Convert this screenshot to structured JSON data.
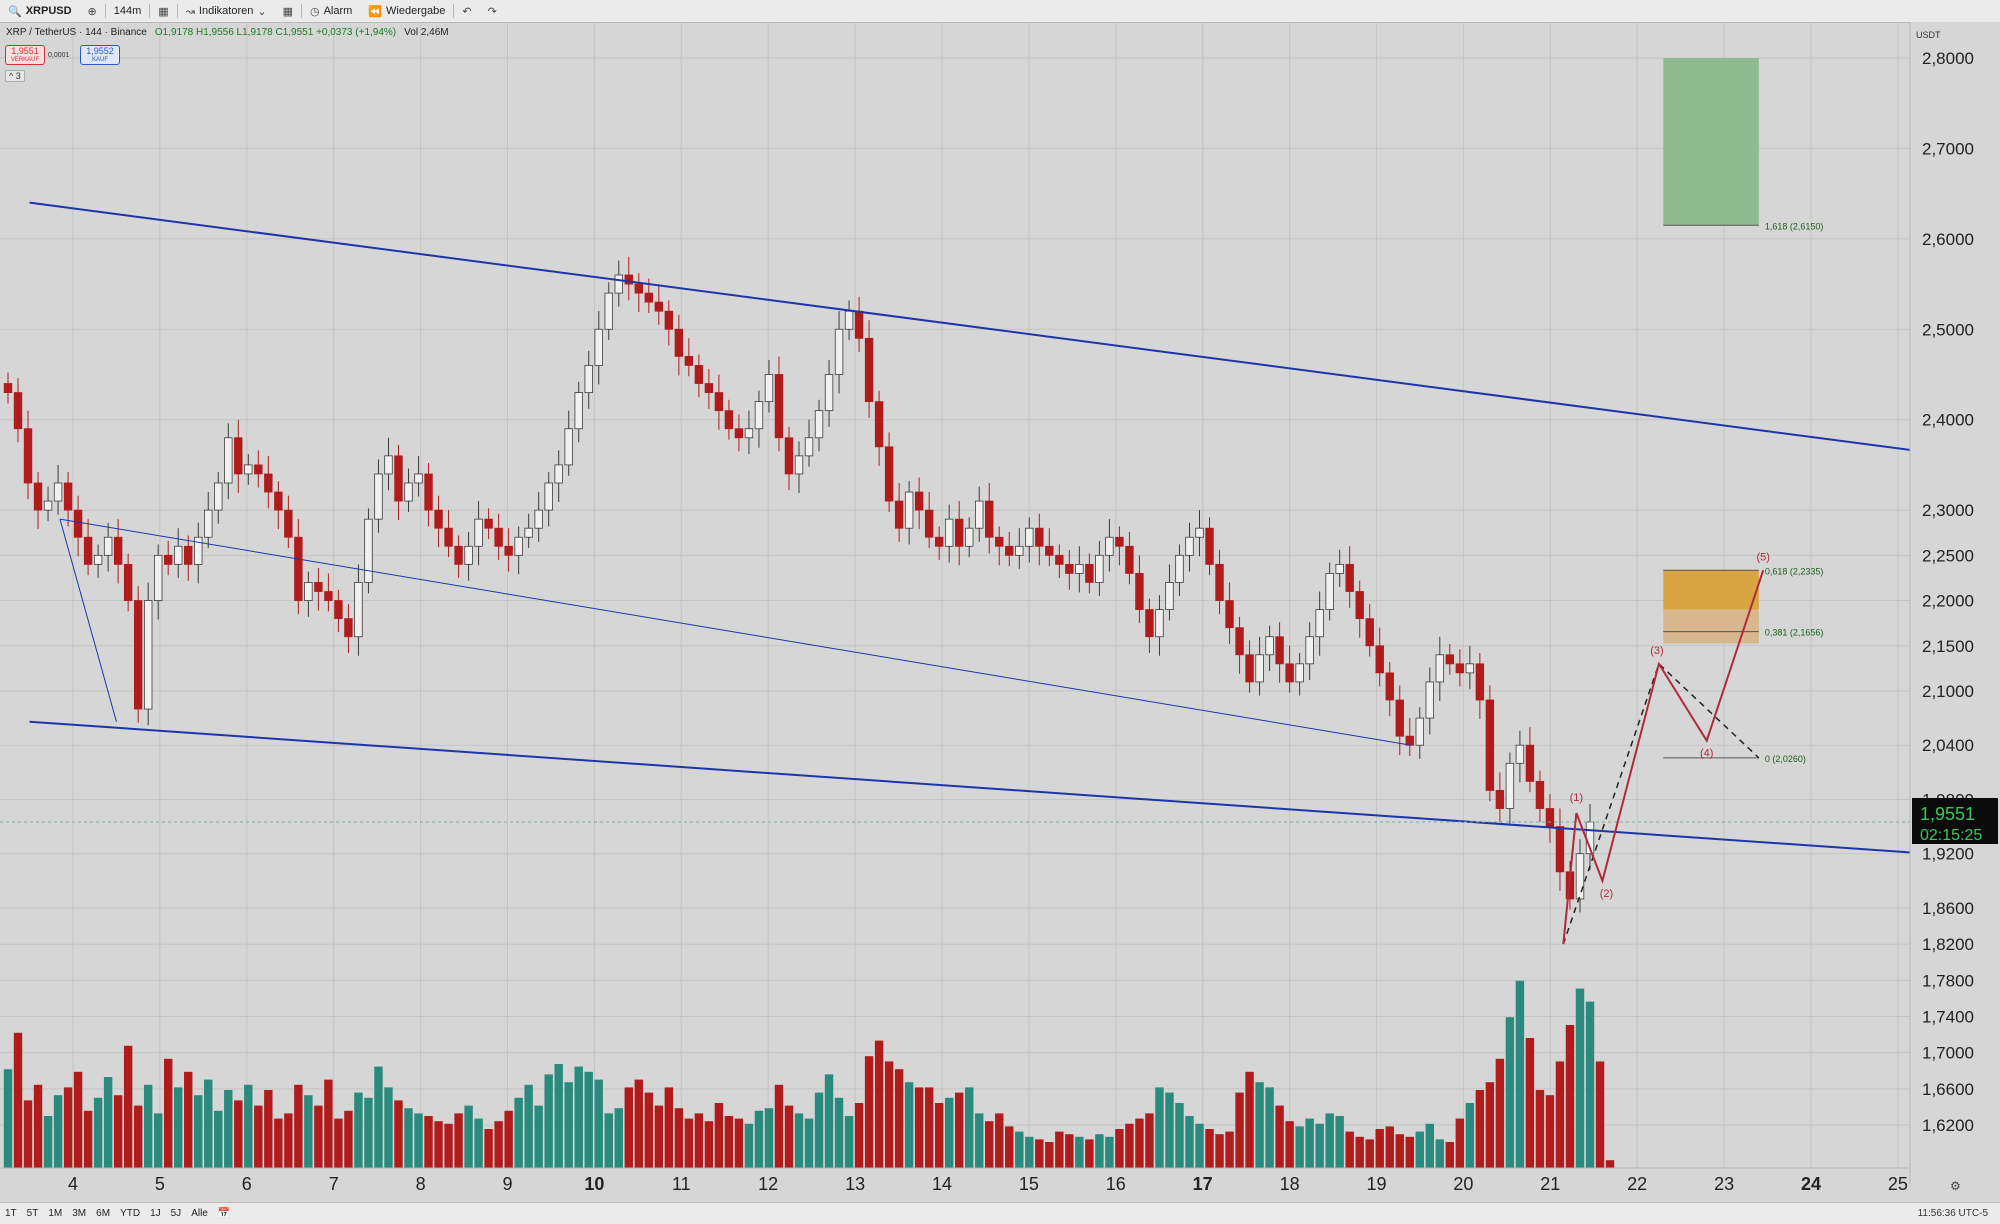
{
  "toolbar": {
    "symbol": "XRPUSD",
    "interval": "144m",
    "indicators_label": "Indikatoren",
    "alarm_label": "Alarm",
    "replay_label": "Wiedergabe"
  },
  "legend": {
    "title": "XRP / TetherUS · 144 · Binance",
    "ohlc": "O1,9178 H1,9556 L1,9178 C1,9551 +0,0373 (+1,94%)",
    "volume": "Vol 2,46M",
    "sell_price": "1,9551",
    "sell_label": "VERKAUF",
    "spread": "0,0001",
    "buy_price": "1,9552",
    "buy_label": "KAUF",
    "collapse": "^ 3"
  },
  "price_badge": {
    "price": "1,9551",
    "countdown": "02:15:25"
  },
  "bottombar": {
    "ranges": [
      "1T",
      "5T",
      "1M",
      "3M",
      "6M",
      "YTD",
      "1J",
      "5J",
      "Alle"
    ],
    "clock": "11:56:36 UTC-5"
  },
  "chart_data": {
    "type": "candlestick",
    "currency_label": "USDT",
    "y_ticks": [
      "2,8000",
      "2,7000",
      "2,6000",
      "2,5000",
      "2,4000",
      "2,3000",
      "2,2500",
      "2,2000",
      "2,1500",
      "2,1000",
      "2,0400",
      "1,9800",
      "1,9200",
      "1,8600",
      "1,8200",
      "1,7800",
      "1,7400",
      "1,7000",
      "1,6600",
      "1,6200"
    ],
    "x_ticks": [
      {
        "label": "4",
        "day": 4,
        "bold": false
      },
      {
        "label": "5",
        "day": 5,
        "bold": false
      },
      {
        "label": "6",
        "day": 6,
        "bold": false
      },
      {
        "label": "7",
        "day": 7,
        "bold": false
      },
      {
        "label": "8",
        "day": 8,
        "bold": false
      },
      {
        "label": "9",
        "day": 9,
        "bold": false
      },
      {
        "label": "10",
        "day": 10,
        "bold": true
      },
      {
        "label": "11",
        "day": 11,
        "bold": false
      },
      {
        "label": "12",
        "day": 12,
        "bold": false
      },
      {
        "label": "13",
        "day": 13,
        "bold": false
      },
      {
        "label": "14",
        "day": 14,
        "bold": false
      },
      {
        "label": "15",
        "day": 15,
        "bold": false
      },
      {
        "label": "16",
        "day": 16,
        "bold": false
      },
      {
        "label": "17",
        "day": 17,
        "bold": true
      },
      {
        "label": "18",
        "day": 18,
        "bold": false
      },
      {
        "label": "19",
        "day": 19,
        "bold": false
      },
      {
        "label": "20",
        "day": 20,
        "bold": false
      },
      {
        "label": "21",
        "day": 21,
        "bold": false
      },
      {
        "label": "22",
        "day": 22,
        "bold": false
      },
      {
        "label": "23",
        "day": 23,
        "bold": false
      },
      {
        "label": "24",
        "day": 24,
        "bold": true
      },
      {
        "label": "25",
        "day": 25,
        "bold": false
      }
    ],
    "closes": [
      2.43,
      2.39,
      2.33,
      2.3,
      2.31,
      2.33,
      2.3,
      2.27,
      2.24,
      2.25,
      2.27,
      2.24,
      2.2,
      2.08,
      2.2,
      2.25,
      2.24,
      2.26,
      2.24,
      2.27,
      2.3,
      2.33,
      2.38,
      2.34,
      2.35,
      2.34,
      2.32,
      2.3,
      2.27,
      2.2,
      2.22,
      2.21,
      2.2,
      2.18,
      2.16,
      2.22,
      2.29,
      2.34,
      2.36,
      2.31,
      2.33,
      2.34,
      2.3,
      2.28,
      2.26,
      2.24,
      2.26,
      2.29,
      2.28,
      2.26,
      2.25,
      2.27,
      2.28,
      2.3,
      2.33,
      2.35,
      2.39,
      2.43,
      2.46,
      2.5,
      2.54,
      2.56,
      2.55,
      2.54,
      2.53,
      2.52,
      2.5,
      2.47,
      2.46,
      2.44,
      2.43,
      2.41,
      2.39,
      2.38,
      2.39,
      2.42,
      2.45,
      2.38,
      2.34,
      2.36,
      2.38,
      2.41,
      2.45,
      2.5,
      2.52,
      2.49,
      2.42,
      2.37,
      2.31,
      2.28,
      2.32,
      2.3,
      2.27,
      2.26,
      2.29,
      2.26,
      2.28,
      2.31,
      2.27,
      2.26,
      2.25,
      2.26,
      2.28,
      2.26,
      2.25,
      2.24,
      2.23,
      2.24,
      2.22,
      2.25,
      2.27,
      2.26,
      2.23,
      2.19,
      2.16,
      2.19,
      2.22,
      2.25,
      2.27,
      2.28,
      2.24,
      2.2,
      2.17,
      2.14,
      2.11,
      2.14,
      2.16,
      2.13,
      2.11,
      2.13,
      2.16,
      2.19,
      2.23,
      2.24,
      2.21,
      2.18,
      2.15,
      2.12,
      2.09,
      2.05,
      2.04,
      2.07,
      2.11,
      2.14,
      2.13,
      2.12,
      2.13,
      2.09,
      1.99,
      1.97,
      2.02,
      2.04,
      2.0,
      1.97,
      1.95,
      1.9,
      1.87,
      1.92,
      1.9551
    ],
    "volumes": [
      0.38,
      0.52,
      0.26,
      0.32,
      0.2,
      0.28,
      0.31,
      0.37,
      0.22,
      0.27,
      0.35,
      0.28,
      0.47,
      0.24,
      0.32,
      0.21,
      0.42,
      0.31,
      0.37,
      0.28,
      0.34,
      0.22,
      0.3,
      0.26,
      0.32,
      0.24,
      0.3,
      0.19,
      0.21,
      0.32,
      0.28,
      0.24,
      0.34,
      0.19,
      0.22,
      0.29,
      0.27,
      0.39,
      0.31,
      0.26,
      0.23,
      0.21,
      0.2,
      0.18,
      0.17,
      0.21,
      0.24,
      0.19,
      0.15,
      0.18,
      0.22,
      0.27,
      0.32,
      0.24,
      0.36,
      0.4,
      0.33,
      0.39,
      0.37,
      0.34,
      0.21,
      0.23,
      0.31,
      0.34,
      0.29,
      0.24,
      0.31,
      0.23,
      0.19,
      0.21,
      0.18,
      0.25,
      0.2,
      0.19,
      0.17,
      0.22,
      0.23,
      0.32,
      0.24,
      0.21,
      0.19,
      0.29,
      0.36,
      0.27,
      0.2,
      0.25,
      0.43,
      0.49,
      0.41,
      0.38,
      0.33,
      0.31,
      0.31,
      0.25,
      0.27,
      0.29,
      0.31,
      0.21,
      0.18,
      0.21,
      0.16,
      0.14,
      0.12,
      0.11,
      0.1,
      0.14,
      0.13,
      0.12,
      0.11,
      0.13,
      0.12,
      0.15,
      0.17,
      0.19,
      0.21,
      0.31,
      0.29,
      0.25,
      0.2,
      0.17,
      0.15,
      0.13,
      0.14,
      0.29,
      0.37,
      0.33,
      0.31,
      0.24,
      0.18,
      0.16,
      0.19,
      0.17,
      0.21,
      0.2,
      0.14,
      0.12,
      0.11,
      0.15,
      0.16,
      0.13,
      0.12,
      0.14,
      0.17,
      0.11,
      0.1,
      0.19,
      0.25,
      0.3,
      0.33,
      0.42,
      0.58,
      0.72,
      0.5,
      0.3,
      0.28,
      0.41,
      0.55,
      0.69,
      0.64,
      0.41,
      0.03
    ],
    "channel_lines": [
      {
        "name": "upper",
        "from": [
          3.5,
          2.64
        ],
        "to": [
          25.5,
          2.362
        ]
      },
      {
        "name": "lower",
        "from": [
          3.5,
          2.066
        ],
        "to": [
          25.5,
          1.919
        ]
      },
      {
        "name": "trend",
        "from": [
          3.85,
          2.29
        ],
        "to": [
          19.4,
          2.04
        ]
      },
      {
        "name": "trend_left",
        "from": [
          3.85,
          2.29
        ],
        "to": [
          4.5,
          2.066
        ]
      }
    ],
    "wave_labels": [
      "(1)",
      "(2)",
      "(3)",
      "(4)",
      "(5)"
    ],
    "fib_levels": [
      {
        "label": "1,618 (2,6150)",
        "value": 2.615
      },
      {
        "label": "0,618 (2,2335)",
        "value": 2.2335
      },
      {
        "label": "0,381 (2,1656)",
        "value": 2.1656
      },
      {
        "label": "0 (2,0260)",
        "value": 2.026
      }
    ],
    "zones": [
      {
        "name": "target",
        "from": 2.615,
        "to": 2.8,
        "color": "#8cb88c"
      },
      {
        "name": "upper-zone",
        "from": 2.19,
        "to": 2.2335,
        "color": "#d9a238"
      },
      {
        "name": "lower-zone",
        "from": 2.1525,
        "to": 2.19,
        "color": "#d8b58a"
      }
    ],
    "colors": {
      "up": "#2a8a7e",
      "down": "#b01c1c",
      "channel": "#1d35a8",
      "wave": "#b02a3a",
      "price_badge": "#0b0b0b",
      "price_text": "#39c85c"
    }
  }
}
